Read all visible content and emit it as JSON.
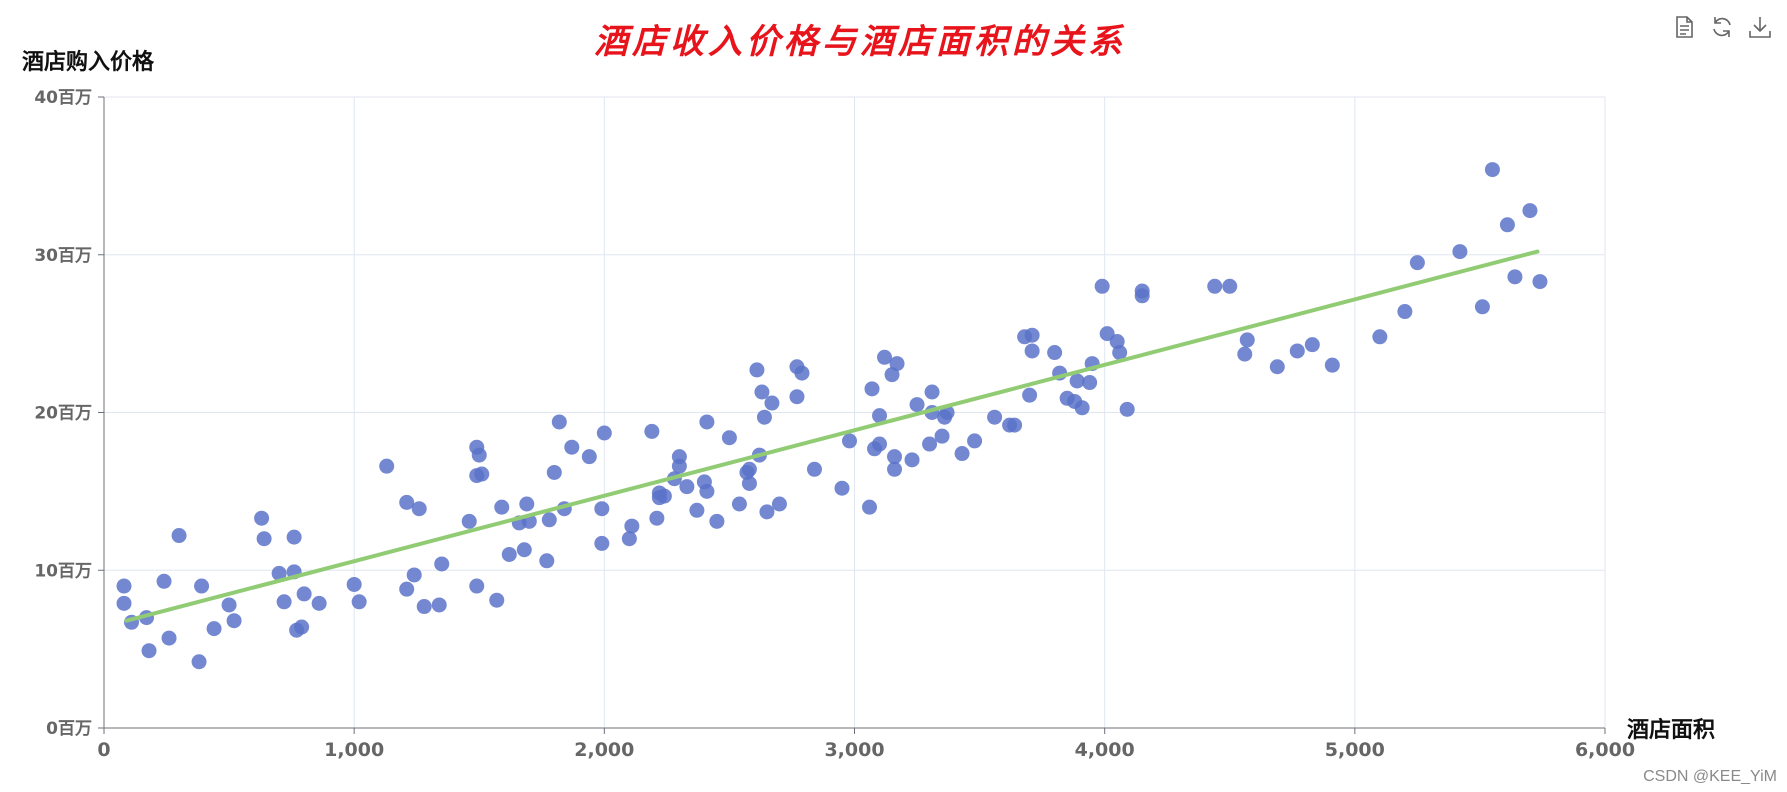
{
  "chart_data": {
    "type": "scatter",
    "title": "酒店收入价格与酒店面积的关系",
    "xlabel": "酒店面积",
    "ylabel": "酒店购入价格",
    "xlim": [
      0,
      6000
    ],
    "ylim": [
      0,
      40
    ],
    "x_ticks": [
      "0",
      "1,000",
      "2,000",
      "3,000",
      "4,000",
      "5,000",
      "6,000"
    ],
    "y_ticks": [
      "0百万",
      "10百万",
      "20百万",
      "30百万",
      "40百万"
    ],
    "grid": true,
    "point_color": "#5b73c9",
    "line_color": "#91cc75",
    "series": [
      {
        "type": "scatter",
        "points": [
          [
            80,
            9.0
          ],
          [
            80,
            7.9
          ],
          [
            110,
            6.7
          ],
          [
            170,
            7.0
          ],
          [
            180,
            4.9
          ],
          [
            240,
            9.3
          ],
          [
            260,
            5.7
          ],
          [
            300,
            12.2
          ],
          [
            380,
            4.2
          ],
          [
            390,
            9.0
          ],
          [
            440,
            6.3
          ],
          [
            500,
            7.8
          ],
          [
            520,
            6.8
          ],
          [
            630,
            13.3
          ],
          [
            640,
            12.0
          ],
          [
            700,
            9.8
          ],
          [
            720,
            8.0
          ],
          [
            760,
            9.9
          ],
          [
            760,
            12.1
          ],
          [
            770,
            6.2
          ],
          [
            790,
            6.4
          ],
          [
            800,
            8.5
          ],
          [
            860,
            7.9
          ],
          [
            1000,
            9.1
          ],
          [
            1020,
            8.0
          ],
          [
            1130,
            16.6
          ],
          [
            1210,
            8.8
          ],
          [
            1210,
            14.3
          ],
          [
            1240,
            9.7
          ],
          [
            1260,
            13.9
          ],
          [
            1280,
            7.7
          ],
          [
            1340,
            7.8
          ],
          [
            1350,
            10.4
          ],
          [
            1460,
            13.1
          ],
          [
            1490,
            17.8
          ],
          [
            1490,
            16.0
          ],
          [
            1490,
            9.0
          ],
          [
            1500,
            17.3
          ],
          [
            1510,
            16.1
          ],
          [
            1570,
            8.1
          ],
          [
            1590,
            14.0
          ],
          [
            1620,
            11.0
          ],
          [
            1660,
            13.0
          ],
          [
            1680,
            11.3
          ],
          [
            1690,
            14.2
          ],
          [
            1700,
            13.1
          ],
          [
            1770,
            10.6
          ],
          [
            1780,
            13.2
          ],
          [
            1800,
            16.2
          ],
          [
            1820,
            19.4
          ],
          [
            1840,
            13.9
          ],
          [
            1870,
            17.8
          ],
          [
            1940,
            17.2
          ],
          [
            1990,
            11.7
          ],
          [
            1990,
            13.9
          ],
          [
            2000,
            18.7
          ],
          [
            2100,
            12.0
          ],
          [
            2110,
            12.8
          ],
          [
            2190,
            18.8
          ],
          [
            2210,
            13.3
          ],
          [
            2220,
            14.9
          ],
          [
            2220,
            14.6
          ],
          [
            2240,
            14.7
          ],
          [
            2280,
            15.8
          ],
          [
            2300,
            16.6
          ],
          [
            2300,
            17.2
          ],
          [
            2330,
            15.3
          ],
          [
            2370,
            13.8
          ],
          [
            2400,
            15.6
          ],
          [
            2410,
            19.4
          ],
          [
            2410,
            15.0
          ],
          [
            2450,
            13.1
          ],
          [
            2500,
            18.4
          ],
          [
            2540,
            14.2
          ],
          [
            2570,
            16.2
          ],
          [
            2580,
            15.5
          ],
          [
            2580,
            16.4
          ],
          [
            2610,
            22.7
          ],
          [
            2620,
            17.3
          ],
          [
            2630,
            21.3
          ],
          [
            2640,
            19.7
          ],
          [
            2650,
            13.7
          ],
          [
            2670,
            20.6
          ],
          [
            2700,
            14.2
          ],
          [
            2770,
            22.9
          ],
          [
            2770,
            21.0
          ],
          [
            2790,
            22.5
          ],
          [
            2840,
            16.4
          ],
          [
            2950,
            15.2
          ],
          [
            2980,
            18.2
          ],
          [
            3060,
            14.0
          ],
          [
            3070,
            21.5
          ],
          [
            3080,
            17.7
          ],
          [
            3100,
            18.0
          ],
          [
            3100,
            19.8
          ],
          [
            3120,
            23.5
          ],
          [
            3150,
            22.4
          ],
          [
            3160,
            16.4
          ],
          [
            3160,
            17.2
          ],
          [
            3170,
            23.1
          ],
          [
            3230,
            17.0
          ],
          [
            3250,
            20.5
          ],
          [
            3300,
            18.0
          ],
          [
            3310,
            20.0
          ],
          [
            3310,
            21.3
          ],
          [
            3350,
            18.5
          ],
          [
            3360,
            19.7
          ],
          [
            3370,
            20.0
          ],
          [
            3430,
            17.4
          ],
          [
            3480,
            18.2
          ],
          [
            3560,
            19.7
          ],
          [
            3620,
            19.2
          ],
          [
            3640,
            19.2
          ],
          [
            3680,
            24.8
          ],
          [
            3700,
            21.1
          ],
          [
            3710,
            23.9
          ],
          [
            3710,
            24.9
          ],
          [
            3800,
            23.8
          ],
          [
            3820,
            22.5
          ],
          [
            3850,
            20.9
          ],
          [
            3880,
            20.7
          ],
          [
            3890,
            22.0
          ],
          [
            3910,
            20.3
          ],
          [
            3940,
            21.9
          ],
          [
            3950,
            23.1
          ],
          [
            3990,
            28.0
          ],
          [
            4010,
            25.0
          ],
          [
            4050,
            24.5
          ],
          [
            4060,
            23.8
          ],
          [
            4090,
            20.2
          ],
          [
            4150,
            27.4
          ],
          [
            4150,
            27.7
          ],
          [
            4440,
            28.0
          ],
          [
            4500,
            28.0
          ],
          [
            4560,
            23.7
          ],
          [
            4570,
            24.6
          ],
          [
            4690,
            22.9
          ],
          [
            4770,
            23.9
          ],
          [
            4830,
            24.3
          ],
          [
            4910,
            23.0
          ],
          [
            5100,
            24.8
          ],
          [
            5200,
            26.4
          ],
          [
            5250,
            29.5
          ],
          [
            5420,
            30.2
          ],
          [
            5510,
            26.7
          ],
          [
            5550,
            35.4
          ],
          [
            5610,
            31.9
          ],
          [
            5640,
            28.6
          ],
          [
            5700,
            32.8
          ],
          [
            5740,
            28.3
          ]
        ]
      },
      {
        "type": "line",
        "points": [
          [
            90,
            6.8
          ],
          [
            5730,
            30.2
          ]
        ]
      }
    ]
  },
  "watermark": "CSDN @KEE_YiM",
  "toolbox": [
    "data-view-icon",
    "restore-icon",
    "save-image-icon"
  ]
}
